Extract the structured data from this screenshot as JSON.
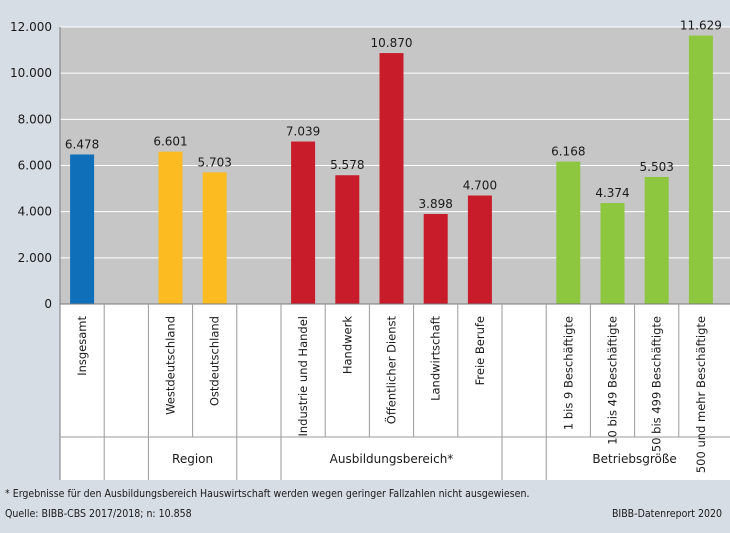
{
  "chart_data": {
    "type": "bar",
    "ylim": [
      0,
      12000
    ],
    "yticks": [
      "0",
      "2.000",
      "4.000",
      "6.000",
      "8.000",
      "10.000",
      "12.000"
    ],
    "grid": true,
    "bars": [
      {
        "category": "Insgesamt",
        "value": 6478,
        "label": "6.478",
        "color": "#0f6fb8"
      },
      {
        "category": "Westdeutschland",
        "value": 6601,
        "label": "6.601",
        "color": "#fbbb21"
      },
      {
        "category": "Ostdeutschland",
        "value": 5703,
        "label": "5.703",
        "color": "#fbbb21"
      },
      {
        "category": "Industrie und Handel",
        "value": 7039,
        "label": "7.039",
        "color": "#c81c2a"
      },
      {
        "category": "Handwerk",
        "value": 5578,
        "label": "5.578",
        "color": "#c81c2a"
      },
      {
        "category": "Öffentlicher Dienst",
        "value": 10870,
        "label": "10.870",
        "color": "#c81c2a"
      },
      {
        "category": "Landwirtschaft",
        "value": 3898,
        "label": "3.898",
        "color": "#c81c2a"
      },
      {
        "category": "Freie Berufe",
        "value": 4700,
        "label": "4.700",
        "color": "#c81c2a"
      },
      {
        "category": "1 bis 9 Beschäftigte",
        "value": 6168,
        "label": "6.168",
        "color": "#8dc63f"
      },
      {
        "category": "10 bis 49 Beschäftigte",
        "value": 4374,
        "label": "4.374",
        "color": "#8dc63f"
      },
      {
        "category": "50 bis 499 Beschäftigte",
        "value": 5503,
        "label": "5.503",
        "color": "#8dc63f"
      },
      {
        "category": "500 und mehr Beschäftigte",
        "value": 11629,
        "label": "11.629",
        "color": "#8dc63f"
      }
    ],
    "groups": [
      {
        "name": "",
        "bars": [
          0
        ]
      },
      {
        "name": "Region",
        "bars": [
          1,
          2
        ]
      },
      {
        "name": "Ausbildungsbereich*",
        "bars": [
          3,
          4,
          5,
          6,
          7
        ]
      },
      {
        "name": "Betriebsgröße",
        "bars": [
          8,
          9,
          10,
          11
        ]
      }
    ]
  },
  "footnote": "* Ergebnisse für den Ausbildungsbereich Hauswirtschaft werden wegen geringer Fallzahlen nicht ausgewiesen.",
  "source": "Quelle: BIBB-CBS 2017/2018; n: 10.858",
  "credit": "BIBB-Datenreport 2020"
}
